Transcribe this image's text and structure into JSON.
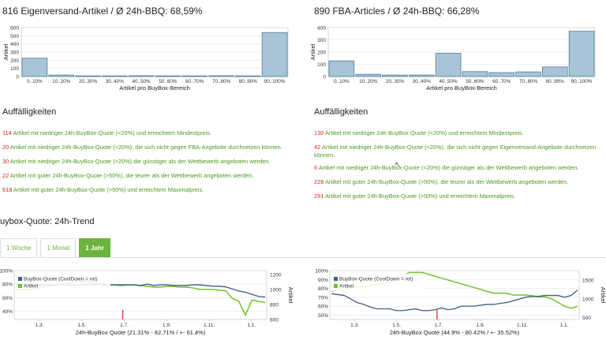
{
  "left": {
    "title": "816 Eigenversand-Artikel / Ø 24h-BBQ: 68,59%",
    "section_title": "Auffälligkeiten",
    "notes": [
      {
        "count": "114",
        "text": " Artikel mit niedriger 24h-BuyBox-Quote (<20%) und erreichtem Mindestpreis."
      },
      {
        "count": "20",
        "text": " Artikel mit niedriger 24h-BuyBox-Quote (<20%), die sich nicht gegen FBA-Angebote durchsetzen können."
      },
      {
        "count": "30",
        "text": " Artikel mit niedriger 24h-BuyBox-Quote (<20%) die günstiger als der Wettbewerb angeboten werden."
      },
      {
        "count": "22",
        "text": " Artikel mit guter 24h-BuyBox-Quote (>50%), die teurer als der Wettbewerb angeboten werden."
      },
      {
        "count": "518",
        "text": " Artikel mit guter 24h-BuyBox-Quote (>50%) und erreichtem Maximalpreis."
      }
    ]
  },
  "right": {
    "title": "890 FBA-Articles / Ø 24h-BBQ: 66,28%",
    "section_title": "Auffälligkeiten",
    "notes": [
      {
        "count": "130",
        "text": " Artikel mit niedriger 24h-BuyBox-Quote (<20%) und erreichtem Mindestpreis."
      },
      {
        "count": "42",
        "text": " Artikel mit niedriger 24h-BuyBox-Quote (<20%), die sich nicht gegen Eigenversand-Angebote durchsetzen können."
      },
      {
        "count": "6",
        "text": " Artikel mit niedriger 24h-BuyBox-Quote (<20%) die günstiger als der Wettbewerb angeboten werden."
      },
      {
        "count": "228",
        "text": " Artikel mit guter 24h-BuyBox-Quote (>50%), die teurer als der Wettbewerb angeboten werden."
      },
      {
        "count": "291",
        "text": " Artikel mit guter 24h-BuyBox-Quote (>50%) und erreichtem Maximalpreis."
      }
    ]
  },
  "trend": {
    "title": "uybox-Quote: 24h-Trend",
    "tabs": [
      {
        "label": "1 Woche",
        "active": false
      },
      {
        "label": "1 Monat",
        "active": false
      },
      {
        "label": "1 Jahr",
        "active": true
      }
    ]
  },
  "colors": {
    "bar_fill": "#a9c4d6",
    "bar_stroke": "#4d7d9a",
    "buybox_line": "#3c5f82",
    "artikel_line": "#72bf2a",
    "red_accent": "#e0201a",
    "green_text": "#4a9a1c"
  },
  "chart_data": [
    {
      "type": "bar",
      "categories": [
        "0..10%",
        "10..20%",
        "20..30%",
        "30..40%",
        "40..50%",
        "50..60%",
        "60..70%",
        "70..80%",
        "80..90%",
        "90..100%"
      ],
      "values": [
        225,
        18,
        8,
        8,
        10,
        8,
        8,
        10,
        8,
        540
      ],
      "xlabel": "Artikel pro BuyBox-Bereich",
      "ylabel": "Artikel",
      "ylim": [
        0,
        600
      ],
      "yticks": [
        0,
        100,
        200,
        300,
        400,
        500,
        600
      ]
    },
    {
      "type": "bar",
      "categories": [
        "0..10%",
        "10..20%",
        "20..30%",
        "30..40%",
        "40..50%",
        "50..60%",
        "60..70%",
        "70..80%",
        "80..90%",
        "90..100%"
      ],
      "values": [
        128,
        18,
        12,
        12,
        190,
        40,
        32,
        38,
        78,
        370
      ],
      "xlabel": "Artikel pro BuyBox-Bereich",
      "ylabel": "Artikel",
      "ylim": [
        0,
        400
      ],
      "yticks": [
        0,
        100,
        200,
        300,
        400
      ]
    },
    {
      "type": "line",
      "xlabel": "24h-BuyBox Quote (21.31% - 82.71% / +- 61.4%)",
      "ylabel_right": "Artikel",
      "x_ticks": [
        "1.3.",
        "1.5.",
        "1.7.",
        "1.9.",
        "1.11.",
        "1.1."
      ],
      "y_left_ticks": [
        "40%",
        "60%",
        "80%",
        "100%"
      ],
      "y_right_ticks": [
        "600",
        "800",
        "1000",
        "1200"
      ],
      "y_left_lim": [
        28,
        100
      ],
      "y_right_lim": [
        600,
        1250
      ],
      "legend": [
        "BuyBox-Quote (CoolDown = rot)",
        "Artikel"
      ],
      "series": [
        {
          "name": "BuyBox-Quote (CoolDown = rot)",
          "values": [
            80,
            80,
            80,
            80,
            79,
            79,
            79,
            80,
            79,
            79,
            79,
            79,
            79,
            80,
            79,
            79,
            79,
            79,
            79,
            78,
            80,
            78,
            79,
            79,
            78,
            78,
            78,
            79,
            79,
            78,
            77,
            77,
            76,
            73,
            70,
            68,
            65,
            62,
            61
          ]
        },
        {
          "name": "Artikel",
          "values": [
            1000,
            1000,
            1000,
            1010,
            1030,
            1040,
            1060,
            1060,
            1080,
            1100,
            1100,
            1110,
            1080,
            1070,
            1060,
            1060,
            1050,
            1060,
            1060,
            1050,
            1040,
            1030,
            1030,
            1040,
            1040,
            1030,
            1030,
            1020,
            1000,
            1000,
            1000,
            990,
            980,
            880,
            840,
            660,
            860,
            840,
            830
          ]
        }
      ]
    },
    {
      "type": "line",
      "xlabel": "24h-BuyBox Quote (44.9% - 80.42% / +- 35.52%)",
      "ylabel_right": "Artikel",
      "x_ticks": [
        "1.3.",
        "1.5.",
        "1.7.",
        "1.9.",
        "1.11.",
        "1.1."
      ],
      "y_left_ticks": [
        "50%",
        "60%",
        "70%",
        "80%",
        "90%",
        "100%"
      ],
      "y_right_ticks": [
        "500",
        "1000",
        "1500"
      ],
      "y_left_lim": [
        45,
        100
      ],
      "y_right_lim": [
        450,
        1750
      ],
      "legend": [
        "BuyBox-Quote (CoolDown = rot)",
        "Artikel"
      ],
      "series": [
        {
          "name": "BuyBox-Quote (CoolDown = rot)",
          "values": [
            74,
            73,
            72,
            68,
            64,
            62,
            59,
            57,
            57,
            57,
            55,
            55,
            56,
            57,
            55,
            55,
            56,
            58,
            56,
            57,
            60,
            60,
            60,
            61,
            62,
            62,
            63,
            64,
            66,
            68,
            70,
            71,
            71,
            72,
            72,
            72,
            70,
            72,
            78
          ]
        },
        {
          "name": "Artikel",
          "values": [
            1200,
            1250,
            1250,
            1300,
            1300,
            1320,
            1350,
            1380,
            1400,
            1450,
            1500,
            1580,
            1700,
            1700,
            1700,
            1650,
            1600,
            1550,
            1500,
            1450,
            1400,
            1350,
            1300,
            1250,
            1200,
            1150,
            1150,
            1150,
            1100,
            1100,
            1100,
            1080,
            1050,
            1050,
            1000,
            900,
            800,
            750,
            800
          ]
        }
      ]
    }
  ]
}
